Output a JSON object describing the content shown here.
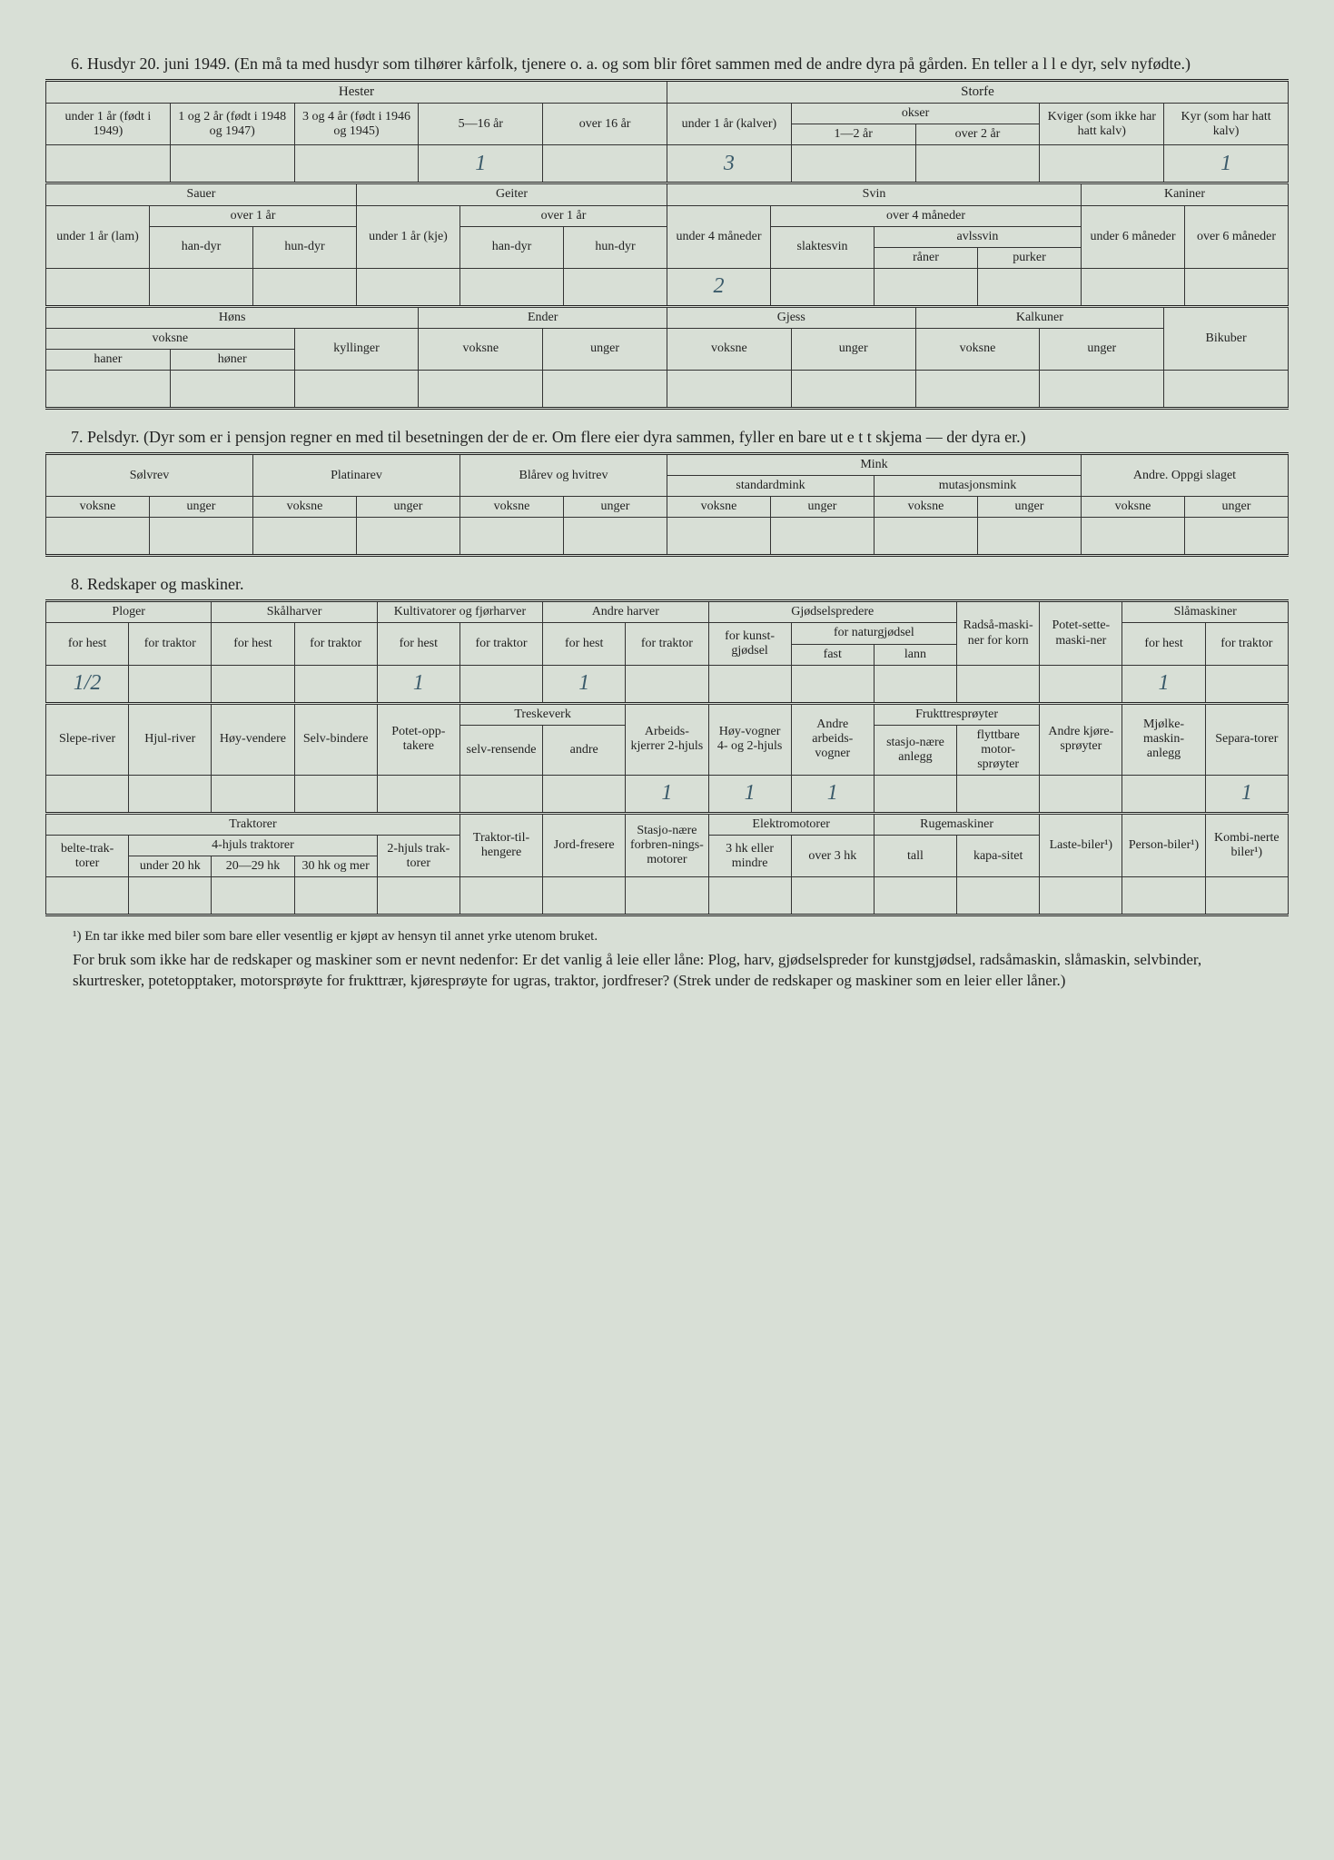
{
  "section6": {
    "title": "6. Husdyr 20. juni 1949.  (En må ta med husdyr som tilhører kårfolk, tjenere o. a. og som blir fôret sammen med de andre dyra på gården.   En teller a l l e dyr, selv nyfødte.)",
    "horses": {
      "group": "Hester",
      "cols": [
        "under 1 år (født i 1949)",
        "1 og 2 år (født i 1948 og 1947)",
        "3 og 4 år (født i 1946 og 1945)",
        "5—16 år",
        "over 16 år"
      ]
    },
    "cattle": {
      "group": "Storfe",
      "under1": "under 1 år (kalver)",
      "okser": "okser",
      "okser_sub": [
        "1—2 år",
        "over 2 år"
      ],
      "kviger": "Kviger (som ikke har hatt kalv)",
      "kyr": "Kyr (som har hatt kalv)"
    },
    "row1_values": {
      "c4": "1",
      "c6": "3",
      "c10": "1"
    },
    "sheep": {
      "group": "Sauer",
      "under1": "under 1 år (lam)",
      "over1": "over 1 år",
      "sub": [
        "han-dyr",
        "hun-dyr"
      ]
    },
    "goats": {
      "group": "Geiter",
      "under1": "under 1 år (kje)",
      "over1": "over 1 år",
      "sub": [
        "han-dyr",
        "hun-dyr"
      ]
    },
    "pigs": {
      "group": "Svin",
      "under4m": "under 4 måneder",
      "over4m": "over 4 måneder",
      "slakt": "slaktesvin",
      "avls": "avlssvin",
      "avls_sub": [
        "råner",
        "purker"
      ]
    },
    "rabbits": {
      "group": "Kaniner",
      "sub": [
        "under 6 måneder",
        "over 6 måneder"
      ]
    },
    "row2_values": {
      "c7": "2"
    },
    "poultry": {
      "hons": "Høns",
      "voksne": "voksne",
      "haner": "haner",
      "honer": "høner",
      "kyllinger": "kyllinger",
      "ender": "Ender",
      "unger": "unger",
      "gjess": "Gjess",
      "kalkuner": "Kalkuner",
      "bikuber": "Bikuber"
    }
  },
  "section7": {
    "title": "7. Pelsdyr.  (Dyr som er i pensjon regner en med til besetningen der de er.   Om flere eier dyra sammen, fyller en bare ut e t t skjema — der dyra er.)",
    "cols": {
      "solvrev": "Sølvrev",
      "platinarev": "Platinarev",
      "blarev": "Blårev og hvitrev",
      "mink": "Mink",
      "std": "standardmink",
      "mut": "mutasjonsmink",
      "andre": "Andre. Oppgi slaget",
      "voksne": "voksne",
      "unger": "unger"
    }
  },
  "section8": {
    "title": "8. Redskaper og maskiner.",
    "row_a": {
      "ploger": "Ploger",
      "skalharver": "Skålharver",
      "kult": "Kultivatorer og fjørharver",
      "andreharver": "Andre harver",
      "gjodsel": "Gjødselspredere",
      "forheist": "for hest",
      "fortraktor": "for traktor",
      "kunst": "for kunst-gjødsel",
      "natur": "for naturgjødsel",
      "fast": "fast",
      "lann": "lann",
      "radsa": "Radså-maski-ner for korn",
      "potet": "Potet-sette-maski-ner",
      "sla": "Slåmaskiner"
    },
    "row_a_values": {
      "c1": "1/2",
      "c5": "1",
      "c7": "1",
      "c13": "1"
    },
    "row_b": {
      "slepe": "Slepe-river",
      "hjul": "Hjul-river",
      "hoy": "Høy-vendere",
      "selv": "Selv-bindere",
      "potetopp": "Potet-opp-takere",
      "treske": "Treskeverk",
      "selvrens": "selv-rensende",
      "andre": "andre",
      "arbeid": "Arbeids-kjerrer 2-hjuls",
      "hoyvogn": "Høy-vogner 4- og 2-hjuls",
      "andrevogn": "Andre arbeids-vogner",
      "frukt": "Frukttresprøyter",
      "stasjo": "stasjo-nære anlegg",
      "flytt": "flyttbare motor-sprøyter",
      "kjore": "Andre kjøre-sprøyter",
      "mjolke": "Mjølke-maskin-anlegg",
      "sep": "Separa-torer"
    },
    "row_b_values": {
      "c8": "1",
      "c9": "1",
      "c10": "1",
      "c16": "1"
    },
    "row_c": {
      "traktorer": "Traktorer",
      "belte": "belte-trak-torer",
      "4hjuls": "4-hjuls traktorer",
      "u20": "under 20 hk",
      "2029": "20—29 hk",
      "30": "30 hk og mer",
      "2hjuls": "2-hjuls trak-torer",
      "tilhenger": "Traktor-til-hengere",
      "jord": "Jord-fresere",
      "stasjmotor": "Stasjo-nære forbren-nings-motorer",
      "elektro": "Elektromotorer",
      "3hk": "3 hk eller mindre",
      "over3": "over 3 hk",
      "ruge": "Rugemaskiner",
      "tall": "tall",
      "kapa": "kapa-sitet",
      "laste": "Laste-biler¹)",
      "person": "Person-biler¹)",
      "kombi": "Kombi-nerte biler¹)"
    }
  },
  "footnote": "¹) En tar ikke med biler som bare eller vesentlig er kjøpt av hensyn til annet yrke utenom bruket.",
  "bodytext": "For bruk som ikke har de redskaper og maskiner som er nevnt nedenfor: Er det vanlig å leie eller låne: Plog, harv, gjødselspreder for kunstgjødsel, radsåmaskin, slåmaskin, selvbinder, skurtresker, potetopptaker, motorsprøyte for frukttrær, kjøresprøyte for ugras, traktor, jordfreser? (Strek under de redskaper og maskiner som en leier eller låner.)"
}
